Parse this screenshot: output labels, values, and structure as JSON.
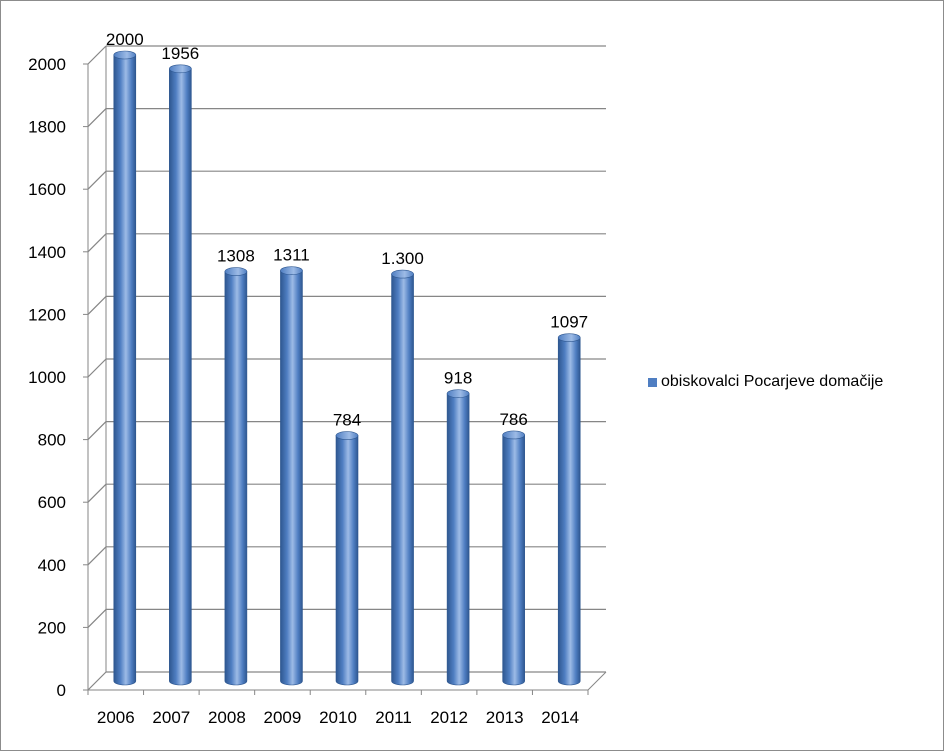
{
  "chart_data": {
    "type": "bar",
    "style": "3d-cylinder",
    "categories": [
      "2006",
      "2007",
      "2008",
      "2009",
      "2010",
      "2011",
      "2012",
      "2013",
      "2014"
    ],
    "series": [
      {
        "name": "obiskovalci Pocarjeve domačije",
        "values": [
          2000,
          1956,
          1308,
          1311,
          784,
          1300,
          918,
          786,
          1097
        ],
        "labels": [
          "2000",
          "1956",
          "1308",
          "1311",
          "784",
          "1.300",
          "918",
          "786",
          "1097"
        ]
      }
    ],
    "yticks": [
      "0",
      "200",
      "400",
      "600",
      "800",
      "1000",
      "1200",
      "1400",
      "1600",
      "1800",
      "2000"
    ],
    "ylim": [
      0,
      2000
    ],
    "grid": true,
    "legend_position": "right",
    "colors": {
      "bar": "#4f7ec2",
      "bar_dark": "#2e5790",
      "bar_light": "#9dbbe6",
      "grid": "#868686"
    }
  }
}
